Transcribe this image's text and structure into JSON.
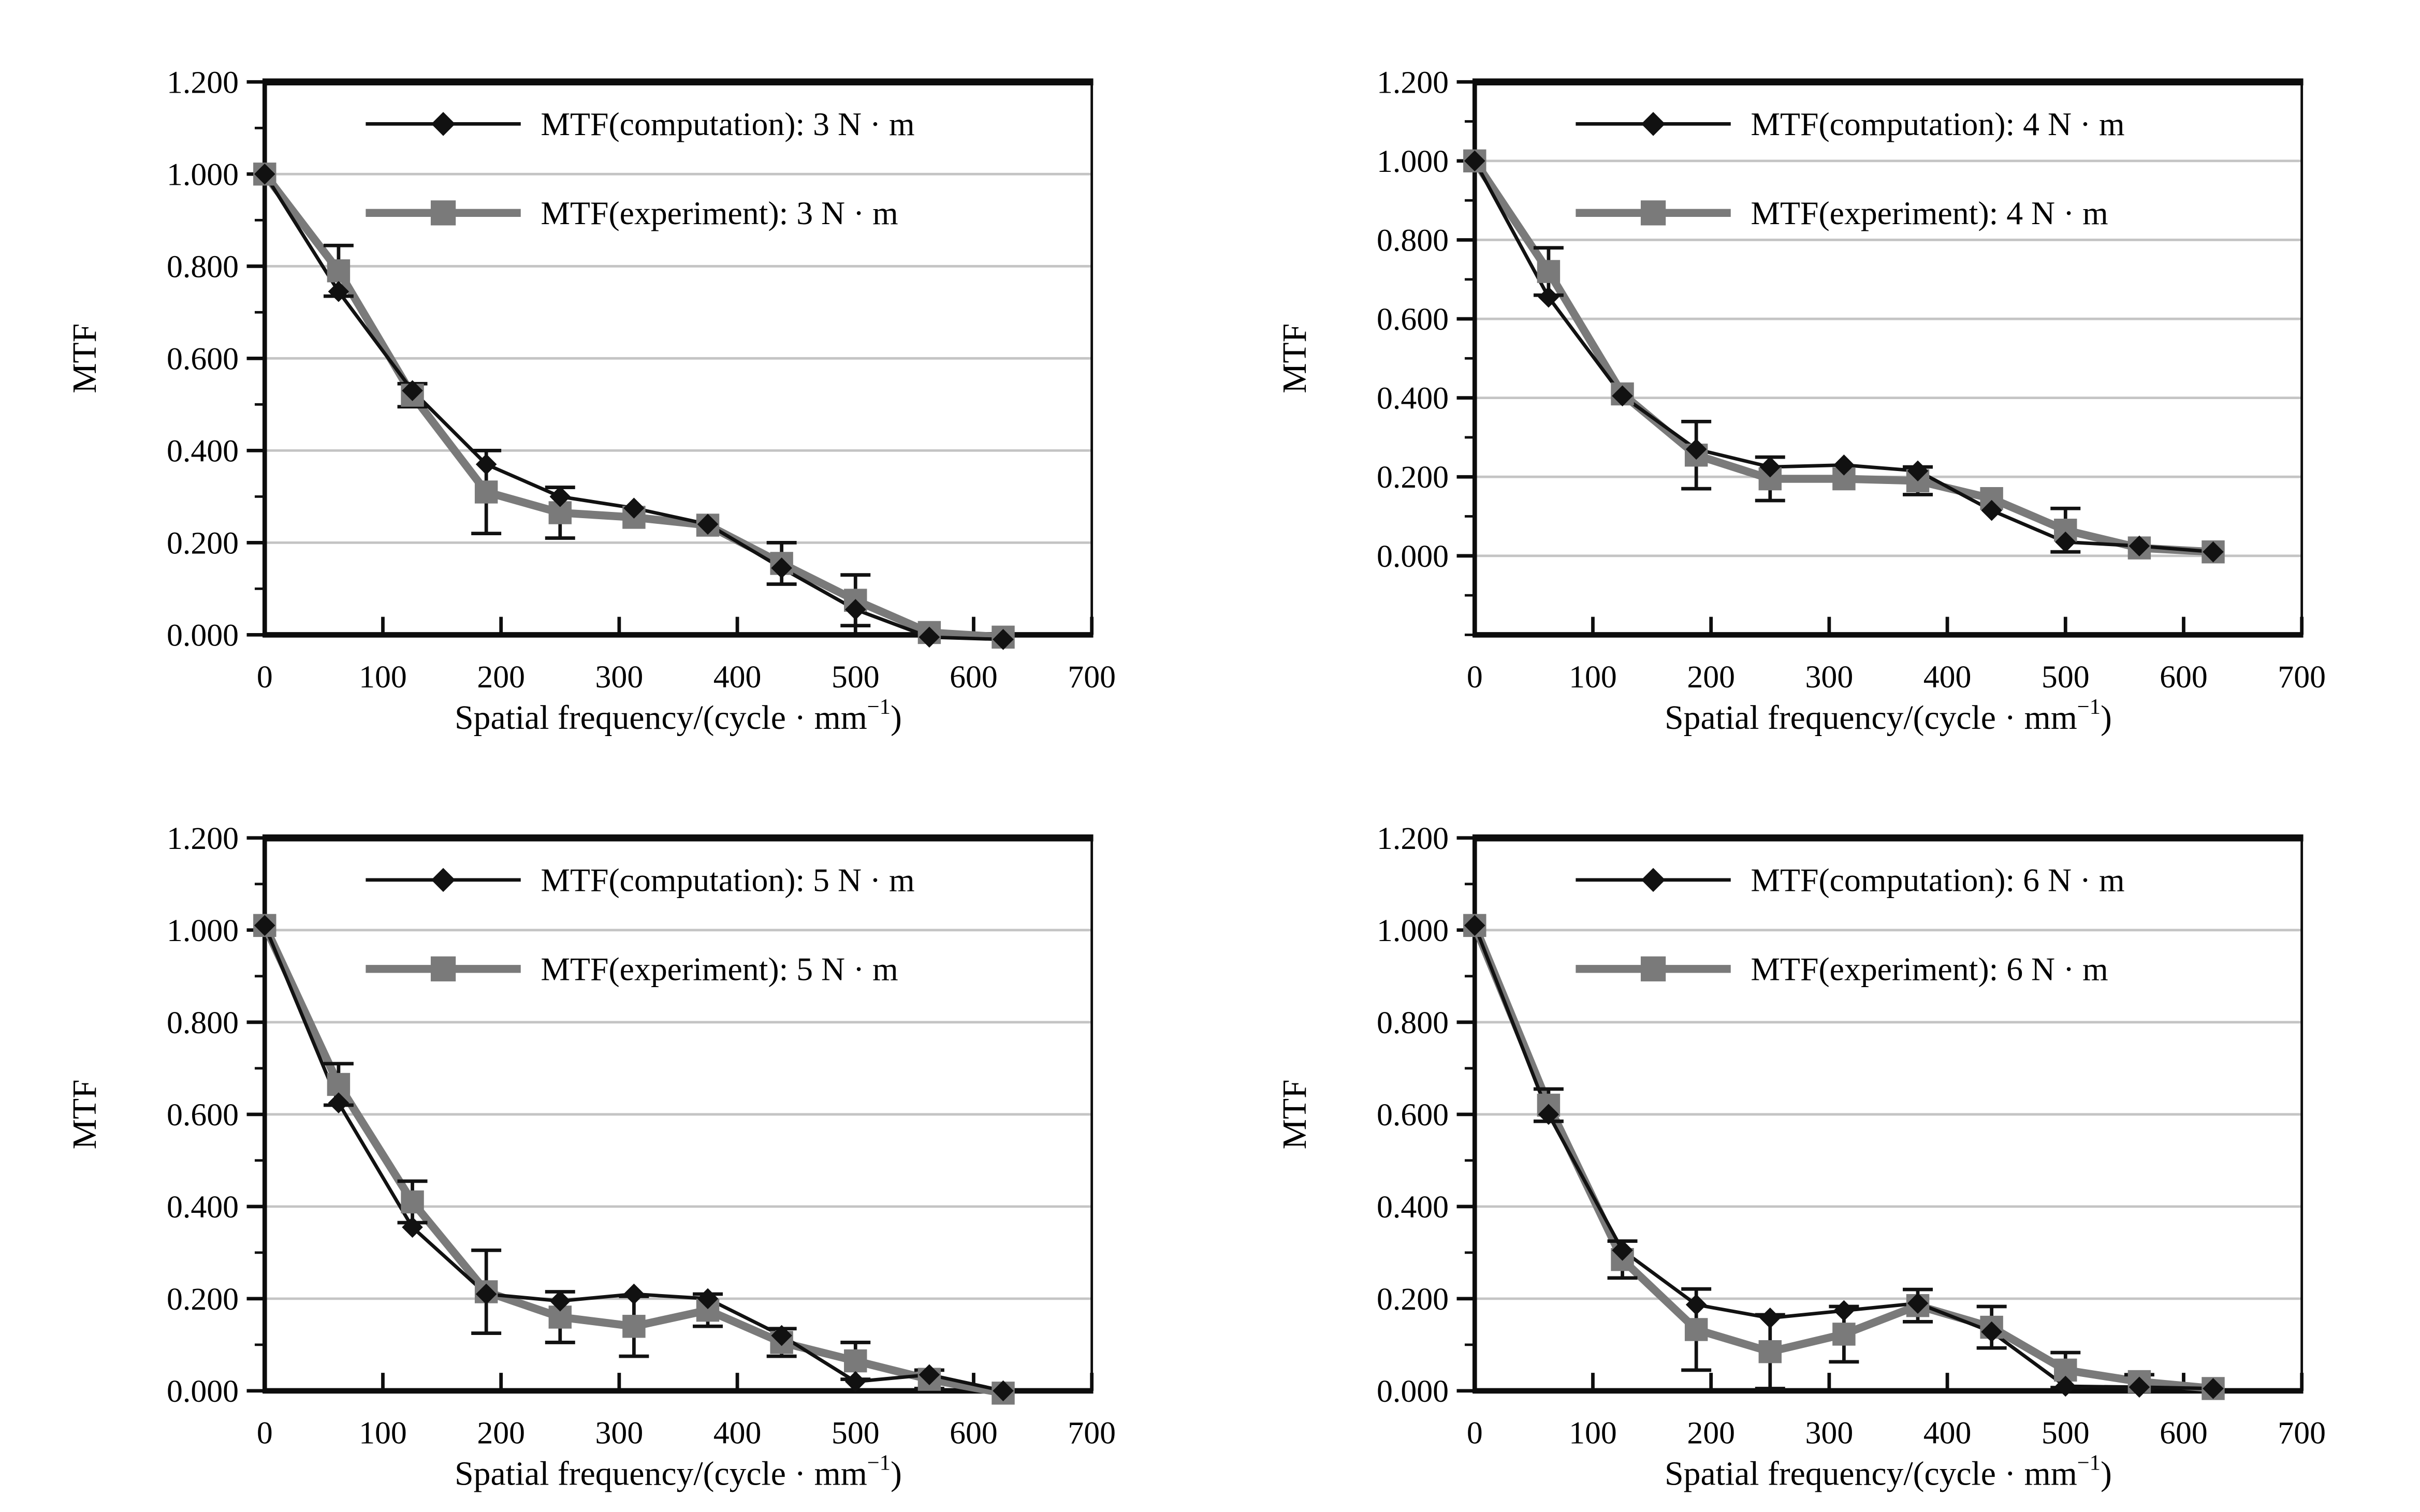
{
  "page": {
    "background": "#ffffff"
  },
  "figure": {
    "rows": 2,
    "cols": 2
  },
  "colors": {
    "computation": "#111111",
    "experiment": "#7a7a7a",
    "grid": "#c4c4c4",
    "axis": "#0d0d0d",
    "error_bar": "#111111"
  },
  "chart_data": [
    {
      "id": "mtf-3nm",
      "type": "line",
      "torque_label": "3 N · m",
      "ylabel": "MTF",
      "xlabel": {
        "main": "Spatial frequency/(cycle · mm",
        "sup": "−1",
        "end": ")"
      },
      "xlim": [
        0,
        700
      ],
      "ylim": [
        0,
        1.2
      ],
      "xticks": [
        0,
        100,
        200,
        300,
        400,
        500,
        600,
        700
      ],
      "xtick_labels": [
        "0",
        "100",
        "200",
        "300",
        "400",
        "500",
        "600",
        "700"
      ],
      "yticks": [
        0,
        0.2,
        0.4,
        0.6,
        0.8,
        1.0,
        1.2
      ],
      "ytick_labels": [
        "0.000",
        "0.200",
        "0.400",
        "0.600",
        "0.800",
        "1.000",
        "1.200"
      ],
      "y_minor_step": 0.1,
      "grid": true,
      "legend_position": "upper-center-inside",
      "legend": [
        {
          "label": "MTF(computation): 3 N · m",
          "series": "computation"
        },
        {
          "label": "MTF(experiment): 3 N · m",
          "series": "experiment"
        }
      ],
      "x": [
        0,
        62.5,
        125,
        187.5,
        250,
        312.5,
        375,
        437.5,
        500,
        562.5,
        625
      ],
      "series": [
        {
          "name": "MTF(computation)",
          "marker": "diamond",
          "color": "#111111",
          "line_width": 7,
          "values": [
            1.0,
            0.745,
            0.53,
            0.37,
            0.3,
            0.275,
            0.24,
            0.145,
            0.055,
            -0.005,
            -0.01
          ]
        },
        {
          "name": "MTF(experiment)",
          "marker": "square",
          "color": "#7a7a7a",
          "line_width": 16,
          "values": [
            1.0,
            0.79,
            0.52,
            0.31,
            0.265,
            0.255,
            0.238,
            0.155,
            0.075,
            0.005,
            -0.005
          ],
          "errors": [
            null,
            0.055,
            0.025,
            0.09,
            0.055,
            null,
            null,
            0.045,
            0.055,
            null,
            null
          ]
        }
      ]
    },
    {
      "id": "mtf-4nm",
      "type": "line",
      "torque_label": "4 N · m",
      "ylabel": "MTF",
      "xlabel": {
        "main": "Spatial frequency/(cycle · mm",
        "sup": "−1",
        "end": ")"
      },
      "xlim": [
        0,
        700
      ],
      "ylim": [
        -0.2,
        1.2
      ],
      "xticks": [
        0,
        100,
        200,
        300,
        400,
        500,
        600,
        700
      ],
      "xtick_labels": [
        "0",
        "100",
        "200",
        "300",
        "400",
        "500",
        "600",
        "700"
      ],
      "yticks": [
        0,
        0.2,
        0.4,
        0.6,
        0.8,
        1.0,
        1.2
      ],
      "ytick_labels": [
        "0.000",
        "0.200",
        "0.400",
        "0.600",
        "0.800",
        "1.000",
        "1.200"
      ],
      "y_minor_step": 0.1,
      "grid": true,
      "legend_position": "upper-center-inside",
      "legend": [
        {
          "label": "MTF(computation): 4 N · m",
          "series": "computation"
        },
        {
          "label": "MTF(experiment): 4 N · m",
          "series": "experiment"
        }
      ],
      "x": [
        0,
        62.5,
        125,
        187.5,
        250,
        312.5,
        375,
        437.5,
        500,
        562.5,
        625
      ],
      "series": [
        {
          "name": "MTF(computation)",
          "marker": "diamond",
          "color": "#111111",
          "line_width": 7,
          "values": [
            1.0,
            0.655,
            0.405,
            0.27,
            0.225,
            0.23,
            0.215,
            0.115,
            0.035,
            0.025,
            0.01
          ]
        },
        {
          "name": "MTF(experiment)",
          "marker": "square",
          "color": "#7a7a7a",
          "line_width": 16,
          "values": [
            1.0,
            0.72,
            0.41,
            0.255,
            0.195,
            0.195,
            0.19,
            0.145,
            0.065,
            0.02,
            0.01
          ],
          "errors": [
            null,
            0.06,
            null,
            0.085,
            0.055,
            null,
            0.035,
            null,
            0.055,
            null,
            null
          ]
        }
      ]
    },
    {
      "id": "mtf-5nm",
      "type": "line",
      "torque_label": "5 N · m",
      "ylabel": "MTF",
      "xlabel": {
        "main": "Spatial frequency/(cycle · mm",
        "sup": "−1",
        "end": ")"
      },
      "xlim": [
        0,
        700
      ],
      "ylim": [
        0,
        1.2
      ],
      "xticks": [
        0,
        100,
        200,
        300,
        400,
        500,
        600,
        700
      ],
      "xtick_labels": [
        "0",
        "100",
        "200",
        "300",
        "400",
        "500",
        "600",
        "700"
      ],
      "yticks": [
        0,
        0.2,
        0.4,
        0.6,
        0.8,
        1.0,
        1.2
      ],
      "ytick_labels": [
        "0.000",
        "0.200",
        "0.400",
        "0.600",
        "0.800",
        "1.000",
        "1.200"
      ],
      "y_minor_step": 0.1,
      "grid": true,
      "legend_position": "upper-center-inside",
      "legend": [
        {
          "label": "MTF(computation): 5 N · m",
          "series": "computation"
        },
        {
          "label": "MTF(experiment): 5 N · m",
          "series": "experiment"
        }
      ],
      "x": [
        0,
        62.5,
        125,
        187.5,
        250,
        312.5,
        375,
        437.5,
        500,
        562.5,
        625
      ],
      "series": [
        {
          "name": "MTF(computation)",
          "marker": "diamond",
          "color": "#111111",
          "line_width": 7,
          "values": [
            1.01,
            0.625,
            0.355,
            0.21,
            0.195,
            0.21,
            0.2,
            0.12,
            0.02,
            0.035,
            0.0
          ]
        },
        {
          "name": "MTF(experiment)",
          "marker": "square",
          "color": "#7a7a7a",
          "line_width": 16,
          "values": [
            1.01,
            0.665,
            0.41,
            0.215,
            0.16,
            0.14,
            0.175,
            0.105,
            0.065,
            0.025,
            -0.005
          ],
          "errors": [
            null,
            0.045,
            0.045,
            0.09,
            0.055,
            0.065,
            0.035,
            0.03,
            0.04,
            0.02,
            null
          ]
        }
      ]
    },
    {
      "id": "mtf-6nm",
      "type": "line",
      "torque_label": "6 N · m",
      "ylabel": "MTF",
      "xlabel": {
        "main": "Spatial frequency/(cycle · mm",
        "sup": "−1",
        "end": ")"
      },
      "xlim": [
        0,
        700
      ],
      "ylim": [
        0,
        1.2
      ],
      "xticks": [
        0,
        100,
        200,
        300,
        400,
        500,
        600,
        700
      ],
      "xtick_labels": [
        "0",
        "100",
        "200",
        "300",
        "400",
        "500",
        "600",
        "700"
      ],
      "yticks": [
        0,
        0.2,
        0.4,
        0.6,
        0.8,
        1.0,
        1.2
      ],
      "ytick_labels": [
        "0.000",
        "0.200",
        "0.400",
        "0.600",
        "0.800",
        "1.000",
        "1.200"
      ],
      "y_minor_step": 0.1,
      "grid": true,
      "legend_position": "upper-center-inside",
      "legend": [
        {
          "label": "MTF(computation): 6 N · m",
          "series": "computation"
        },
        {
          "label": "MTF(experiment): 6 N · m",
          "series": "experiment"
        }
      ],
      "x": [
        0,
        62.5,
        125,
        187.5,
        250,
        312.5,
        375,
        437.5,
        500,
        562.5,
        625
      ],
      "series": [
        {
          "name": "MTF(computation)",
          "marker": "diamond",
          "color": "#111111",
          "line_width": 7,
          "values": [
            1.01,
            0.6,
            0.305,
            0.187,
            0.158,
            0.174,
            0.19,
            0.128,
            0.01,
            0.008,
            0.005
          ]
        },
        {
          "name": "MTF(experiment)",
          "marker": "square",
          "color": "#7a7a7a",
          "line_width": 16,
          "values": [
            1.01,
            0.62,
            0.285,
            0.133,
            0.085,
            0.123,
            0.185,
            0.138,
            0.045,
            0.02,
            0.005
          ],
          "errors": [
            null,
            0.035,
            0.04,
            0.088,
            0.08,
            0.06,
            0.035,
            0.045,
            0.038,
            0.015,
            null
          ]
        }
      ]
    }
  ]
}
